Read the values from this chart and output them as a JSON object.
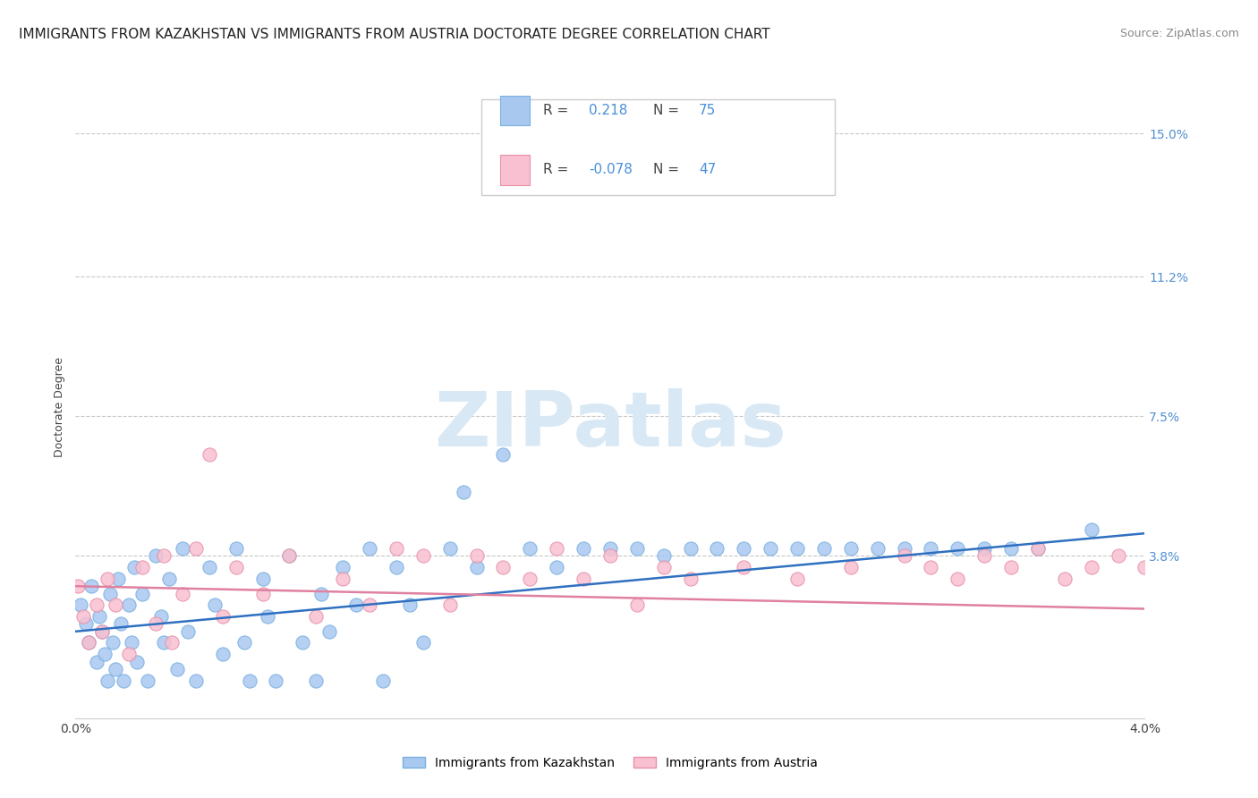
{
  "title": "IMMIGRANTS FROM KAZAKHSTAN VS IMMIGRANTS FROM AUSTRIA DOCTORATE DEGREE CORRELATION CHART",
  "source": "Source: ZipAtlas.com",
  "ylabel": "Doctorate Degree",
  "xlim": [
    0.0,
    0.04
  ],
  "ylim": [
    -0.005,
    0.16
  ],
  "background_color": "#ffffff",
  "grid_color": "#c8c8c8",
  "watermark_text": "ZIPatlas",
  "series": [
    {
      "name": "Immigrants from Kazakhstan",
      "color": "#a8c8f0",
      "edge_color": "#7ab0e0",
      "R": 0.218,
      "N": 75,
      "scatter_x": [
        0.0002,
        0.0004,
        0.0005,
        0.0006,
        0.0008,
        0.0009,
        0.001,
        0.0011,
        0.0012,
        0.0013,
        0.0014,
        0.0015,
        0.0016,
        0.0017,
        0.0018,
        0.002,
        0.0021,
        0.0022,
        0.0023,
        0.0025,
        0.0027,
        0.003,
        0.0032,
        0.0033,
        0.0035,
        0.0038,
        0.004,
        0.0042,
        0.0045,
        0.005,
        0.0052,
        0.0055,
        0.006,
        0.0063,
        0.0065,
        0.007,
        0.0072,
        0.0075,
        0.008,
        0.0085,
        0.009,
        0.0092,
        0.0095,
        0.01,
        0.0105,
        0.011,
        0.0115,
        0.012,
        0.0125,
        0.013,
        0.014,
        0.0145,
        0.015,
        0.016,
        0.017,
        0.018,
        0.019,
        0.02,
        0.021,
        0.022,
        0.023,
        0.024,
        0.025,
        0.026,
        0.027,
        0.028,
        0.029,
        0.03,
        0.031,
        0.032,
        0.033,
        0.034,
        0.035,
        0.036,
        0.038
      ],
      "scatter_y": [
        0.025,
        0.02,
        0.015,
        0.03,
        0.01,
        0.022,
        0.018,
        0.012,
        0.005,
        0.028,
        0.015,
        0.008,
        0.032,
        0.02,
        0.005,
        0.025,
        0.015,
        0.035,
        0.01,
        0.028,
        0.005,
        0.038,
        0.022,
        0.015,
        0.032,
        0.008,
        0.04,
        0.018,
        0.005,
        0.035,
        0.025,
        0.012,
        0.04,
        0.015,
        0.005,
        0.032,
        0.022,
        0.005,
        0.038,
        0.015,
        0.005,
        0.028,
        0.018,
        0.035,
        0.025,
        0.04,
        0.005,
        0.035,
        0.025,
        0.015,
        0.04,
        0.055,
        0.035,
        0.065,
        0.04,
        0.035,
        0.04,
        0.04,
        0.04,
        0.038,
        0.04,
        0.04,
        0.04,
        0.04,
        0.04,
        0.04,
        0.04,
        0.04,
        0.04,
        0.04,
        0.04,
        0.04,
        0.04,
        0.04,
        0.045
      ],
      "trend_x": [
        0.0,
        0.04
      ],
      "trend_y": [
        0.018,
        0.044
      ]
    },
    {
      "name": "Immigrants from Austria",
      "color": "#f8c0d0",
      "edge_color": "#e890a8",
      "R": -0.078,
      "N": 47,
      "scatter_x": [
        0.0001,
        0.0003,
        0.0005,
        0.0008,
        0.001,
        0.0012,
        0.0015,
        0.002,
        0.0025,
        0.003,
        0.0033,
        0.0036,
        0.004,
        0.0045,
        0.005,
        0.0055,
        0.006,
        0.007,
        0.008,
        0.009,
        0.01,
        0.011,
        0.012,
        0.013,
        0.014,
        0.015,
        0.016,
        0.017,
        0.018,
        0.019,
        0.02,
        0.021,
        0.022,
        0.023,
        0.025,
        0.027,
        0.029,
        0.031,
        0.032,
        0.033,
        0.034,
        0.035,
        0.036,
        0.037,
        0.038,
        0.039,
        0.04
      ],
      "scatter_y": [
        0.03,
        0.022,
        0.015,
        0.025,
        0.018,
        0.032,
        0.025,
        0.012,
        0.035,
        0.02,
        0.038,
        0.015,
        0.028,
        0.04,
        0.065,
        0.022,
        0.035,
        0.028,
        0.038,
        0.022,
        0.032,
        0.025,
        0.04,
        0.038,
        0.025,
        0.038,
        0.035,
        0.032,
        0.04,
        0.032,
        0.038,
        0.025,
        0.035,
        0.032,
        0.035,
        0.032,
        0.035,
        0.038,
        0.035,
        0.032,
        0.038,
        0.035,
        0.04,
        0.032,
        0.035,
        0.038,
        0.035
      ],
      "trend_x": [
        0.0,
        0.04
      ],
      "trend_y": [
        0.03,
        0.024
      ]
    }
  ],
  "ytick_vals": [
    0.038,
    0.075,
    0.112,
    0.15
  ],
  "ytick_labels": [
    "3.8%",
    "7.5%",
    "11.2%",
    "15.0%"
  ],
  "xtick_vals": [
    0.0,
    0.04
  ],
  "xtick_labels": [
    "0.0%",
    "4.0%"
  ],
  "tick_color": "#5090d0",
  "text_color_blue": "#4a90d9",
  "text_color_dark": "#444444",
  "title_fontsize": 11,
  "axis_label_fontsize": 9,
  "tick_fontsize": 10,
  "legend_fontsize": 11
}
